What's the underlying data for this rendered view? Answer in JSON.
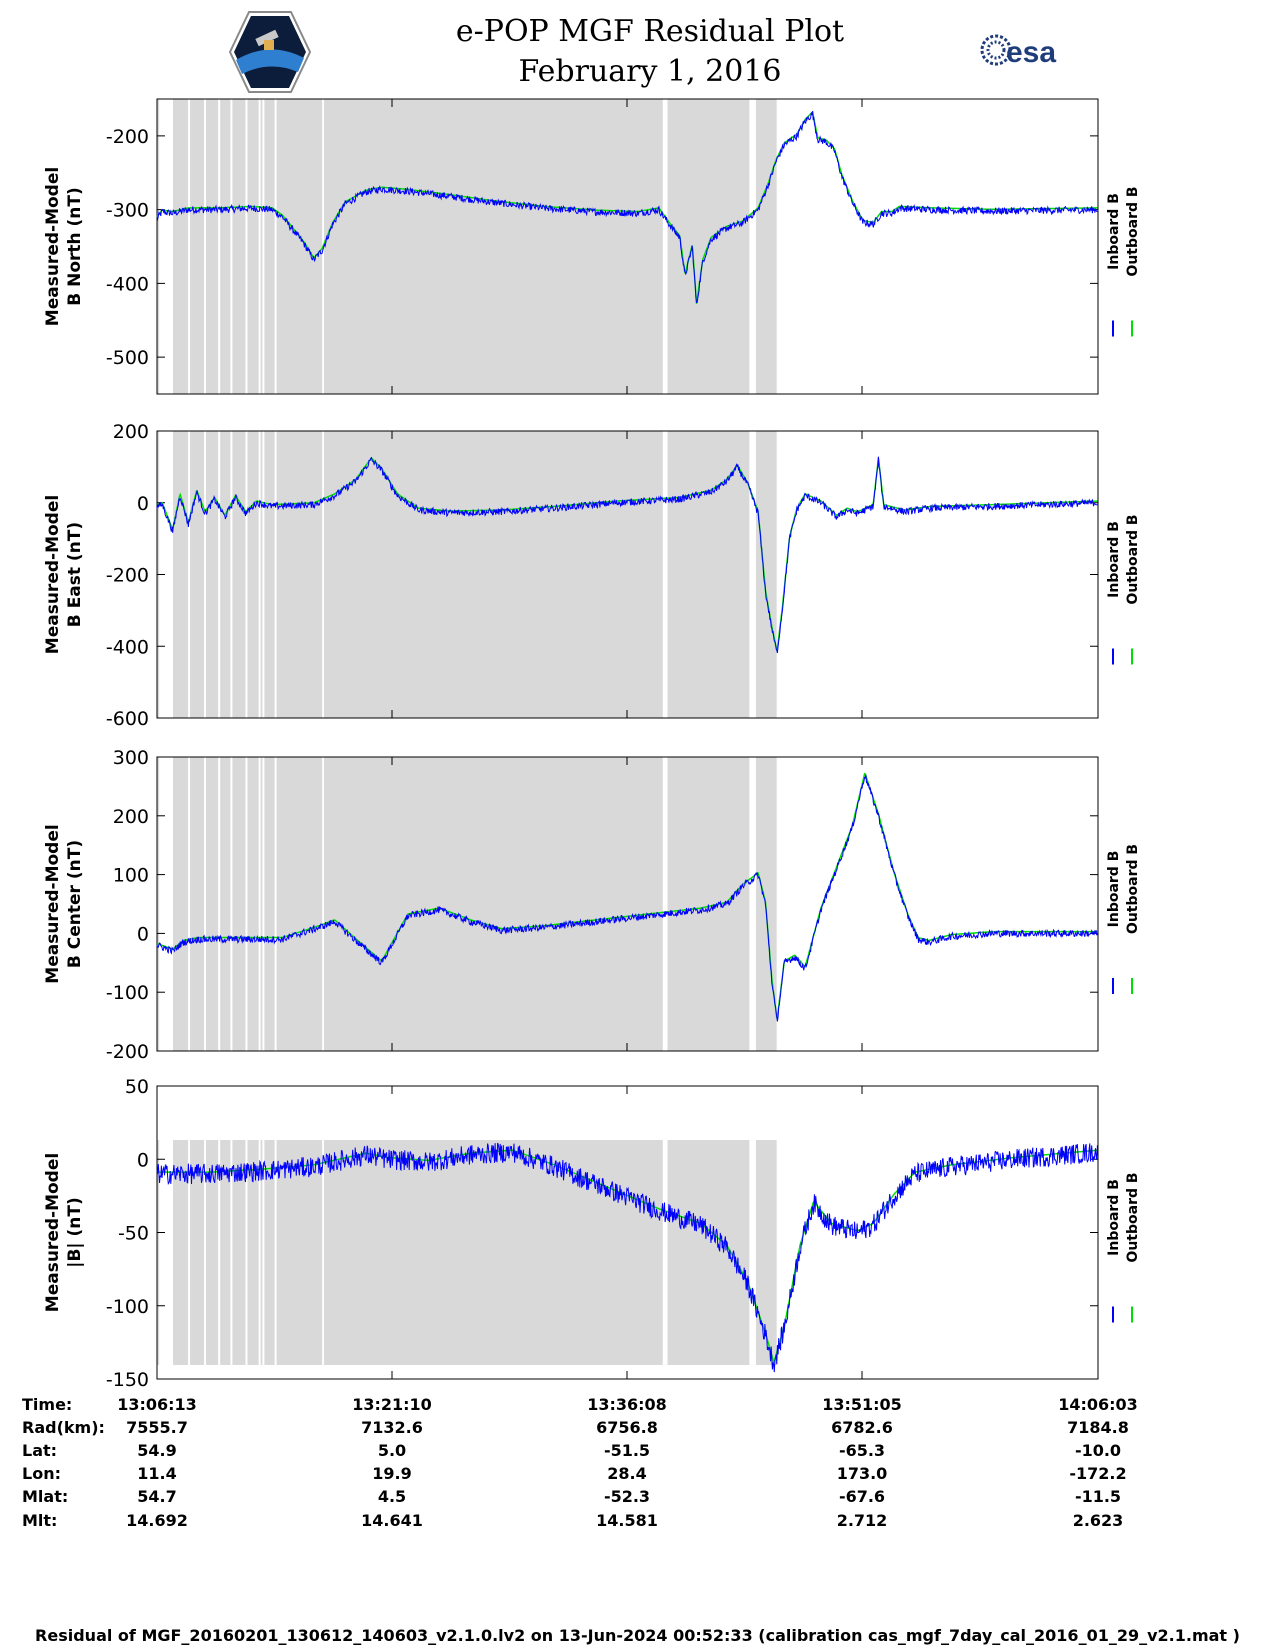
{
  "title": "e-POP MGF Residual Plot",
  "subtitle": "February 1, 2016",
  "logo_right_text": "esa",
  "colors": {
    "inboard": "#0000ff",
    "outboard": "#00dd00",
    "shade": "#d9d9d9"
  },
  "chart_data": [
    {
      "type": "line",
      "ylabel_line1": "Measured-Model",
      "ylabel_line2": "B North (nT)",
      "ylim": [
        -550,
        -150
      ],
      "yticks": [
        -200,
        -300,
        -400,
        -500
      ],
      "legend": [
        "Inboard B",
        "Outboard B"
      ],
      "series_points": [
        [
          0,
          -312
        ],
        [
          5,
          -303
        ],
        [
          15,
          -305
        ],
        [
          30,
          -300
        ],
        [
          60,
          -300
        ],
        [
          90,
          -298
        ],
        [
          110,
          -300
        ],
        [
          120,
          -310
        ],
        [
          140,
          -345
        ],
        [
          150,
          -368
        ],
        [
          158,
          -355
        ],
        [
          168,
          -320
        ],
        [
          180,
          -292
        ],
        [
          200,
          -276
        ],
        [
          215,
          -272
        ],
        [
          240,
          -275
        ],
        [
          280,
          -282
        ],
        [
          320,
          -290
        ],
        [
          370,
          -298
        ],
        [
          420,
          -303
        ],
        [
          460,
          -305
        ],
        [
          480,
          -300
        ],
        [
          490,
          -320
        ],
        [
          500,
          -338
        ],
        [
          505,
          -390
        ],
        [
          512,
          -350
        ],
        [
          516,
          -430
        ],
        [
          522,
          -370
        ],
        [
          530,
          -340
        ],
        [
          545,
          -325
        ],
        [
          560,
          -318
        ],
        [
          575,
          -300
        ],
        [
          585,
          -265
        ],
        [
          592,
          -235
        ],
        [
          600,
          -212
        ],
        [
          612,
          -200
        ],
        [
          620,
          -180
        ],
        [
          627,
          -170
        ],
        [
          632,
          -205
        ],
        [
          640,
          -208
        ],
        [
          648,
          -220
        ],
        [
          655,
          -255
        ],
        [
          665,
          -290
        ],
        [
          675,
          -317
        ],
        [
          685,
          -320
        ],
        [
          693,
          -305
        ],
        [
          703,
          -305
        ],
        [
          710,
          -298
        ],
        [
          740,
          -300
        ],
        [
          800,
          -302
        ],
        [
          900,
          -300
        ]
      ]
    },
    {
      "type": "line",
      "ylabel_line1": "Measured-Model",
      "ylabel_line2": "B East (nT)",
      "ylim": [
        -600,
        200
      ],
      "yticks": [
        200,
        0,
        -200,
        -400,
        -600
      ],
      "legend": [
        "Inboard B",
        "Outboard B"
      ],
      "series_points": [
        [
          0,
          -10
        ],
        [
          5,
          -5
        ],
        [
          15,
          -80
        ],
        [
          22,
          20
        ],
        [
          30,
          -60
        ],
        [
          38,
          30
        ],
        [
          46,
          -30
        ],
        [
          55,
          10
        ],
        [
          65,
          -40
        ],
        [
          75,
          15
        ],
        [
          85,
          -30
        ],
        [
          95,
          0
        ],
        [
          110,
          -10
        ],
        [
          150,
          -5
        ],
        [
          170,
          20
        ],
        [
          190,
          60
        ],
        [
          205,
          120
        ],
        [
          215,
          90
        ],
        [
          230,
          20
        ],
        [
          250,
          -20
        ],
        [
          280,
          -28
        ],
        [
          330,
          -25
        ],
        [
          380,
          -15
        ],
        [
          440,
          0
        ],
        [
          500,
          10
        ],
        [
          530,
          30
        ],
        [
          545,
          60
        ],
        [
          555,
          100
        ],
        [
          565,
          50
        ],
        [
          575,
          -30
        ],
        [
          582,
          -250
        ],
        [
          588,
          -350
        ],
        [
          593,
          -420
        ],
        [
          598,
          -300
        ],
        [
          605,
          -100
        ],
        [
          612,
          -20
        ],
        [
          620,
          20
        ],
        [
          635,
          0
        ],
        [
          650,
          -40
        ],
        [
          660,
          -20
        ],
        [
          670,
          -30
        ],
        [
          685,
          -10
        ],
        [
          690,
          120
        ],
        [
          695,
          -10
        ],
        [
          715,
          -25
        ],
        [
          740,
          -15
        ],
        [
          800,
          -10
        ],
        [
          900,
          0
        ]
      ]
    },
    {
      "type": "line",
      "ylabel_line1": "Measured-Model",
      "ylabel_line2": "B Center (nT)",
      "ylim": [
        -200,
        300
      ],
      "yticks": [
        300,
        200,
        100,
        0,
        -100,
        -200
      ],
      "legend": [
        "Inboard B",
        "Outboard B"
      ],
      "series_points": [
        [
          0,
          -20
        ],
        [
          15,
          -30
        ],
        [
          25,
          -15
        ],
        [
          40,
          -10
        ],
        [
          60,
          -10
        ],
        [
          90,
          -10
        ],
        [
          120,
          -10
        ],
        [
          155,
          10
        ],
        [
          170,
          20
        ],
        [
          195,
          -20
        ],
        [
          215,
          -50
        ],
        [
          240,
          30
        ],
        [
          270,
          40
        ],
        [
          300,
          20
        ],
        [
          330,
          5
        ],
        [
          370,
          10
        ],
        [
          420,
          20
        ],
        [
          470,
          30
        ],
        [
          520,
          40
        ],
        [
          545,
          50
        ],
        [
          560,
          80
        ],
        [
          575,
          100
        ],
        [
          582,
          50
        ],
        [
          588,
          -80
        ],
        [
          593,
          -150
        ],
        [
          600,
          -50
        ],
        [
          610,
          -40
        ],
        [
          620,
          -60
        ],
        [
          635,
          40
        ],
        [
          650,
          110
        ],
        [
          665,
          180
        ],
        [
          677,
          270
        ],
        [
          690,
          200
        ],
        [
          705,
          100
        ],
        [
          718,
          30
        ],
        [
          728,
          -10
        ],
        [
          738,
          -15
        ],
        [
          760,
          -5
        ],
        [
          800,
          0
        ],
        [
          900,
          0
        ]
      ]
    },
    {
      "type": "line",
      "ylabel_line1": "Measured-Model",
      "ylabel_line2": "|B| (nT)",
      "ylim": [
        -150,
        50
      ],
      "yticks": [
        50,
        0,
        -50,
        -100,
        -150
      ],
      "legend": [
        "Inboard B",
        "Outboard B"
      ],
      "series_points": [
        [
          0,
          -10
        ],
        [
          50,
          -10
        ],
        [
          100,
          -8
        ],
        [
          150,
          -5
        ],
        [
          200,
          3
        ],
        [
          220,
          0
        ],
        [
          260,
          -2
        ],
        [
          300,
          3
        ],
        [
          340,
          5
        ],
        [
          380,
          -5
        ],
        [
          430,
          -20
        ],
        [
          480,
          -35
        ],
        [
          520,
          -45
        ],
        [
          545,
          -60
        ],
        [
          565,
          -85
        ],
        [
          582,
          -120
        ],
        [
          590,
          -140
        ],
        [
          600,
          -115
        ],
        [
          615,
          -60
        ],
        [
          628,
          -30
        ],
        [
          645,
          -45
        ],
        [
          670,
          -50
        ],
        [
          685,
          -45
        ],
        [
          705,
          -25
        ],
        [
          725,
          -10
        ],
        [
          760,
          -5
        ],
        [
          820,
          0
        ],
        [
          900,
          5
        ]
      ]
    }
  ],
  "x_ticks": [
    "13:06:13",
    "13:21:10",
    "13:36:08",
    "13:51:05",
    "14:06:03"
  ],
  "shade_intervals": [
    [
      0.0,
      0.0023
    ],
    [
      0.017,
      0.1755
    ],
    [
      0.1775,
      0.5375
    ],
    [
      0.5425,
      0.6295
    ],
    [
      0.6365,
      0.6585
    ]
  ],
  "table": {
    "rows": [
      {
        "label": "Time:",
        "values": [
          "13:06:13",
          "13:21:10",
          "13:36:08",
          "13:51:05",
          "14:06:03"
        ]
      },
      {
        "label": "Rad(km):",
        "values": [
          "7555.7",
          "7132.6",
          "6756.8",
          "6782.6",
          "7184.8"
        ]
      },
      {
        "label": "Lat:",
        "values": [
          "54.9",
          "5.0",
          "-51.5",
          "-65.3",
          "-10.0"
        ]
      },
      {
        "label": "Lon:",
        "values": [
          "11.4",
          "19.9",
          "28.4",
          "173.0",
          "-172.2"
        ]
      },
      {
        "label": "Mlat:",
        "values": [
          "54.7",
          "4.5",
          "-52.3",
          "-67.6",
          "-11.5"
        ]
      },
      {
        "label": "Mlt:",
        "values": [
          "14.692",
          "14.641",
          "14.581",
          "2.712",
          "2.623"
        ]
      }
    ]
  },
  "footer": "Residual of MGF_20160201_130612_140603_v2.1.0.lv2 on 13-Jun-2024 00:52:33 (calibration cas_mgf_7day_cal_2016_01_29_v2.1.mat )"
}
